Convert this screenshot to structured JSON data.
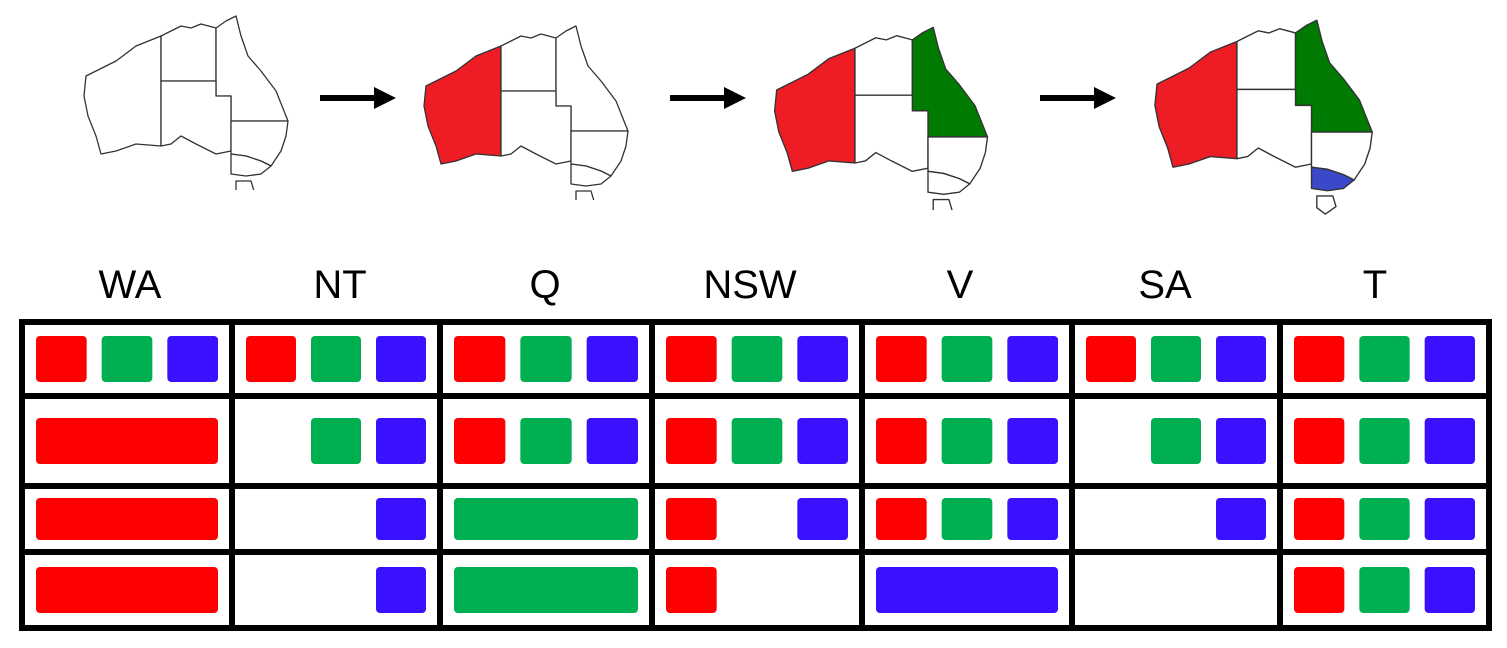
{
  "colors": {
    "red": "#ff0000",
    "green": "#00b050",
    "blue": "#3a10ff",
    "map_red": "#ee1c24",
    "map_green": "#007a00",
    "map_blue": "#3a48c9"
  },
  "variables": [
    "WA",
    "NT",
    "Q",
    "NSW",
    "V",
    "SA",
    "T"
  ],
  "maps": [
    {
      "step": 1,
      "regions": {
        "WA": "white",
        "NT": "white",
        "Q": "white",
        "NSW": "white",
        "V": "white",
        "SA": "white",
        "T": "white"
      }
    },
    {
      "step": 2,
      "regions": {
        "WA": "red",
        "NT": "white",
        "Q": "white",
        "NSW": "white",
        "V": "white",
        "SA": "white",
        "T": "white"
      }
    },
    {
      "step": 3,
      "regions": {
        "WA": "red",
        "NT": "white",
        "Q": "green",
        "NSW": "white",
        "V": "white",
        "SA": "white",
        "T": "white"
      }
    },
    {
      "step": 4,
      "regions": {
        "WA": "red",
        "NT": "white",
        "Q": "green",
        "NSW": "white",
        "V": "blue",
        "SA": "white",
        "T": "white"
      }
    }
  ],
  "domain_rows": [
    {
      "WA": "RGB",
      "NT": "RGB",
      "Q": "RGB",
      "NSW": "RGB",
      "V": "RGB",
      "SA": "RGB",
      "T": "RGB"
    },
    {
      "WA": "R!",
      "NT": "GB",
      "Q": "RGB",
      "NSW": "RGB",
      "V": "RGB",
      "SA": "GB",
      "T": "RGB"
    },
    {
      "WA": "R!",
      "NT": "B",
      "Q": "G!",
      "NSW": "RB",
      "V": "RGB",
      "SA": "B",
      "T": "RGB"
    },
    {
      "WA": "R!",
      "NT": "B",
      "Q": "G!",
      "NSW": "R",
      "V": "B!",
      "SA": "",
      "T": "RGB"
    }
  ]
}
